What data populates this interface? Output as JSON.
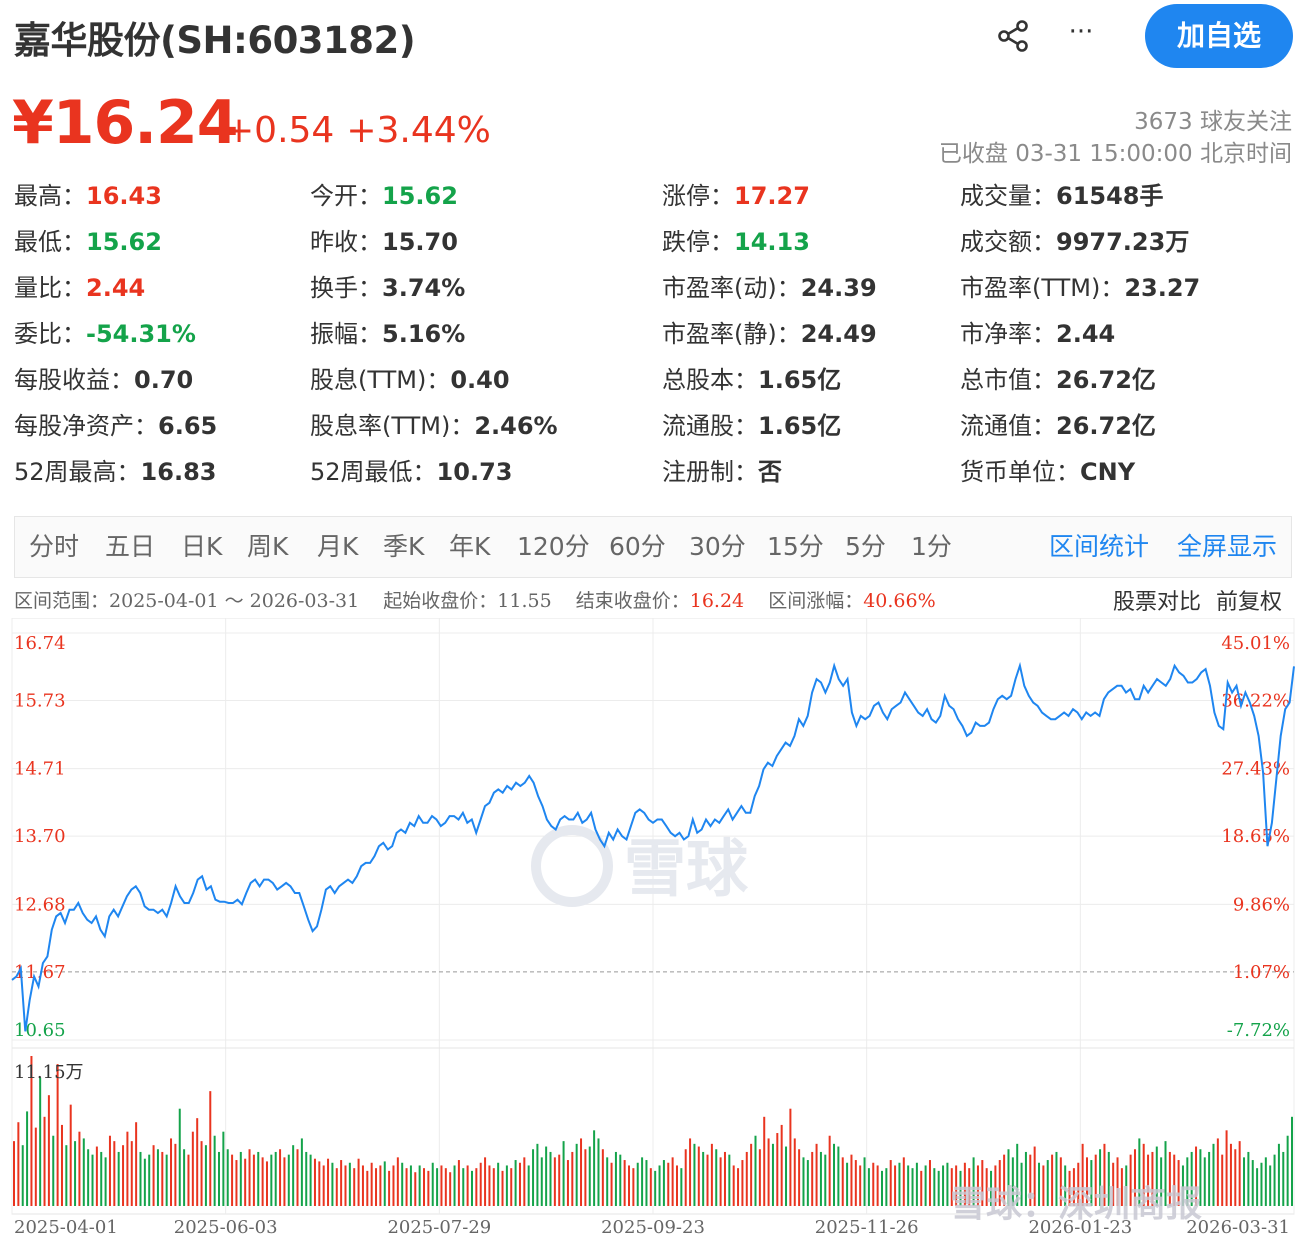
{
  "header": {
    "title": "嘉华股份(SH:603182)",
    "follow_button": "加自选",
    "share_icon": "share-icon",
    "more_icon": "more-icon"
  },
  "quote": {
    "price": "¥16.24",
    "change": "+0.54",
    "change_pct": "+3.44%",
    "followers": "3673 球友关注",
    "status": "已收盘 03-31 15:00:00 北京时间"
  },
  "stats": [
    {
      "label": "最高：",
      "value": "16.43",
      "color": "red"
    },
    {
      "label": "今开：",
      "value": "15.62",
      "color": "green"
    },
    {
      "label": "涨停：",
      "value": "17.27",
      "color": "red"
    },
    {
      "label": "成交量：",
      "value": "61548手",
      "color": ""
    },
    {
      "label": "最低：",
      "value": "15.62",
      "color": "green"
    },
    {
      "label": "昨收：",
      "value": "15.70",
      "color": ""
    },
    {
      "label": "跌停：",
      "value": "14.13",
      "color": "green"
    },
    {
      "label": "成交额：",
      "value": "9977.23万",
      "color": ""
    },
    {
      "label": "量比：",
      "value": "2.44",
      "color": "red"
    },
    {
      "label": "换手：",
      "value": "3.74%",
      "color": ""
    },
    {
      "label": "市盈率(动)：",
      "value": "24.39",
      "color": ""
    },
    {
      "label": "市盈率(TTM)：",
      "value": "23.27",
      "color": ""
    },
    {
      "label": "委比：",
      "value": "-54.31%",
      "color": "green"
    },
    {
      "label": "振幅：",
      "value": "5.16%",
      "color": ""
    },
    {
      "label": "市盈率(静)：",
      "value": "24.49",
      "color": ""
    },
    {
      "label": "市净率：",
      "value": "2.44",
      "color": ""
    },
    {
      "label": "每股收益：",
      "value": "0.70",
      "color": ""
    },
    {
      "label": "股息(TTM)：",
      "value": "0.40",
      "color": ""
    },
    {
      "label": "总股本：",
      "value": "1.65亿",
      "color": ""
    },
    {
      "label": "总市值：",
      "value": "26.72亿",
      "color": ""
    },
    {
      "label": "每股净资产：",
      "value": "6.65",
      "color": ""
    },
    {
      "label": "股息率(TTM)：",
      "value": "2.46%",
      "color": ""
    },
    {
      "label": "流通股：",
      "value": "1.65亿",
      "color": ""
    },
    {
      "label": "流通值：",
      "value": "26.72亿",
      "color": ""
    },
    {
      "label": "52周最高：",
      "value": "16.83",
      "color": ""
    },
    {
      "label": "52周最低：",
      "value": "10.73",
      "color": ""
    },
    {
      "label": "注册制：",
      "value": "否",
      "color": ""
    },
    {
      "label": "货币单位：",
      "value": "CNY",
      "color": ""
    }
  ],
  "tabs": [
    "分时",
    "五日",
    "日K",
    "周K",
    "月K",
    "季K",
    "年K",
    "120分",
    "60分",
    "30分",
    "15分",
    "5分",
    "1分"
  ],
  "tab_links": [
    "区间统计",
    "全屏显示"
  ],
  "range": {
    "range_label": "区间范围：",
    "range_value": "2025-04-01 ～ 2026-03-31",
    "start_label": "起始收盘价：",
    "start_value": "11.55",
    "end_label": "结束收盘价：",
    "end_value": "16.24",
    "pct_label": "区间涨幅：",
    "pct_value": "40.66%",
    "compare": "股票对比",
    "adjust": "前复权"
  },
  "watermark": "雪球",
  "bottom_watermark": "雪球：深圳商报",
  "colors": {
    "up": "#e9341f",
    "down": "#14a34a",
    "line": "#1f86f0",
    "accent": "#1f86f0"
  },
  "chart_data": {
    "type": "line",
    "y_left_ticks": [
      "16.74",
      "15.73",
      "14.71",
      "13.70",
      "12.68",
      "11.67",
      "10.65"
    ],
    "y_right_ticks": [
      "45.01%",
      "36.22%",
      "27.43%",
      "18.65%",
      "9.86%",
      "1.07%",
      "-7.72%"
    ],
    "ylim": [
      10.65,
      16.74
    ],
    "prev_close_reference": 11.55,
    "x_ticks": [
      "2025-04-01",
      "2025-06-03",
      "2025-07-29",
      "2025-09-23",
      "2025-11-26",
      "2026-01-23",
      "2026-03-31"
    ],
    "volume_label": "11.15万",
    "volume_max": 111500,
    "series": [
      {
        "values": [
          11.55,
          11.6,
          11.72,
          10.78,
          11.25,
          11.6,
          11.45,
          11.8,
          11.9,
          12.3,
          12.5,
          12.55,
          12.4,
          12.6,
          12.6,
          12.7,
          12.55,
          12.45,
          12.4,
          12.5,
          12.3,
          12.2,
          12.5,
          12.6,
          12.5,
          12.65,
          12.8,
          12.9,
          12.95,
          12.85,
          12.65,
          12.6,
          12.6,
          12.55,
          12.6,
          12.5,
          12.7,
          12.95,
          12.8,
          12.7,
          12.7,
          12.85,
          13.05,
          13.1,
          12.9,
          12.95,
          12.75,
          12.72,
          12.72,
          12.7,
          12.7,
          12.75,
          12.68,
          12.85,
          13.0,
          13.05,
          12.95,
          13.05,
          13.05,
          13.0,
          12.9,
          12.95,
          13.0,
          12.95,
          12.85,
          12.85,
          12.65,
          12.45,
          12.28,
          12.35,
          12.6,
          12.9,
          12.95,
          12.85,
          12.95,
          13.0,
          13.05,
          13.0,
          13.1,
          13.25,
          13.3,
          13.3,
          13.4,
          13.55,
          13.6,
          13.5,
          13.55,
          13.75,
          13.8,
          13.75,
          13.9,
          13.85,
          14.0,
          13.9,
          13.9,
          14.0,
          13.95,
          13.85,
          13.9,
          14.0,
          14.0,
          13.95,
          14.05,
          13.9,
          13.95,
          13.75,
          13.95,
          14.15,
          14.2,
          14.35,
          14.4,
          14.35,
          14.45,
          14.4,
          14.5,
          14.45,
          14.5,
          14.6,
          14.5,
          14.3,
          14.15,
          13.95,
          13.85,
          13.8,
          13.95,
          14.0,
          13.95,
          13.95,
          14.05,
          13.9,
          13.95,
          14.05,
          13.8,
          13.65,
          13.55,
          13.75,
          13.65,
          13.8,
          13.7,
          13.65,
          13.85,
          14.05,
          14.1,
          14.05,
          13.95,
          13.9,
          13.95,
          13.95,
          13.85,
          13.75,
          13.7,
          13.75,
          13.65,
          13.7,
          13.95,
          13.75,
          13.8,
          13.95,
          13.85,
          13.95,
          13.9,
          14.0,
          14.1,
          13.95,
          14.05,
          14.15,
          14.05,
          14.05,
          14.3,
          14.45,
          14.7,
          14.8,
          14.75,
          14.9,
          15.0,
          15.1,
          15.05,
          15.2,
          15.45,
          15.35,
          15.5,
          15.85,
          16.05,
          16.0,
          15.85,
          16.0,
          16.25,
          16.05,
          15.95,
          16.05,
          15.55,
          15.35,
          15.5,
          15.45,
          15.5,
          15.65,
          15.7,
          15.55,
          15.45,
          15.6,
          15.65,
          15.7,
          15.85,
          15.75,
          15.65,
          15.55,
          15.5,
          15.6,
          15.45,
          15.4,
          15.5,
          15.8,
          15.65,
          15.6,
          15.45,
          15.35,
          15.2,
          15.25,
          15.4,
          15.35,
          15.35,
          15.4,
          15.6,
          15.75,
          15.8,
          15.75,
          15.8,
          16.05,
          16.25,
          15.95,
          15.8,
          15.7,
          15.65,
          15.55,
          15.5,
          15.45,
          15.45,
          15.5,
          15.55,
          15.5,
          15.6,
          15.55,
          15.45,
          15.55,
          15.5,
          15.55,
          15.5,
          15.75,
          15.85,
          15.9,
          15.95,
          15.95,
          15.85,
          15.9,
          15.75,
          15.75,
          15.95,
          15.85,
          15.95,
          16.05,
          16.0,
          15.95,
          16.05,
          16.25,
          16.15,
          16.1,
          16.0,
          16.0,
          16.05,
          16.15,
          16.2,
          15.95,
          15.55,
          15.35,
          15.3,
          16.0,
          15.85,
          15.95,
          15.65,
          15.85,
          15.7,
          15.5,
          15.2,
          14.65,
          13.55,
          13.9,
          14.55,
          15.2,
          15.6,
          15.7,
          16.24
        ]
      }
    ],
    "volumes": [
      48,
      62,
      45,
      70,
      111,
      58,
      95,
      66,
      82,
      52,
      105,
      60,
      45,
      75,
      48,
      55,
      50,
      42,
      38,
      44,
      40,
      36,
      52,
      48,
      40,
      45,
      55,
      48,
      62,
      40,
      35,
      38,
      45,
      42,
      40,
      38,
      50,
      46,
      72,
      42,
      38,
      55,
      65,
      48,
      45,
      85,
      52,
      40,
      55,
      42,
      38,
      34,
      40,
      35,
      42,
      38,
      40,
      36,
      33,
      38,
      40,
      42,
      36,
      38,
      45,
      42,
      50,
      40,
      38,
      35,
      33,
      30,
      35,
      32,
      28,
      34,
      30,
      32,
      28,
      35,
      30,
      26,
      32,
      28,
      30,
      33,
      26,
      30,
      36,
      32,
      28,
      30,
      25,
      30,
      28,
      26,
      32,
      28,
      30,
      28,
      25,
      30,
      34,
      28,
      30,
      26,
      28,
      32,
      36,
      30,
      28,
      32,
      26,
      30,
      28,
      34,
      32,
      36,
      30,
      42,
      46,
      36,
      44,
      40,
      36,
      38,
      48,
      34,
      40,
      46,
      50,
      42,
      44,
      56,
      50,
      42,
      36,
      32,
      40,
      38,
      34,
      30,
      28,
      32,
      36,
      34,
      28,
      26,
      30,
      34,
      32,
      36,
      30,
      28,
      42,
      50,
      46,
      44,
      40,
      38,
      46,
      42,
      36,
      40,
      38,
      30,
      28,
      34,
      40,
      46,
      52,
      42,
      66,
      50,
      46,
      54,
      60,
      44,
      72,
      50,
      42,
      36,
      34,
      40,
      46,
      40,
      38,
      52,
      46,
      44,
      36,
      32,
      38,
      34,
      30,
      36,
      28,
      32,
      30,
      26,
      28,
      34,
      30,
      32,
      36,
      30,
      28,
      32,
      26,
      30,
      34,
      28,
      26,
      30,
      32,
      28,
      30,
      26,
      32,
      28,
      36,
      30,
      34,
      28,
      26,
      30,
      34,
      38,
      42,
      36,
      46,
      32,
      40,
      38,
      44,
      32,
      30,
      34,
      38,
      40,
      36,
      30,
      26,
      28,
      32,
      46,
      36,
      34,
      38,
      42,
      46,
      40,
      32,
      36,
      28,
      30,
      38,
      42,
      50,
      46,
      38,
      40,
      44,
      36,
      48,
      40,
      38,
      34,
      30,
      36,
      40,
      44,
      42,
      36,
      40,
      46,
      50,
      38,
      56,
      46,
      42,
      48,
      36,
      40,
      34,
      28,
      32,
      36,
      30,
      38,
      46,
      40,
      52,
      66
    ],
    "volume_up": [
      1,
      1,
      0,
      0,
      1,
      1,
      0,
      1,
      1,
      0,
      1,
      1,
      0,
      1,
      0,
      1,
      0,
      0,
      0,
      1,
      0,
      0,
      1,
      1,
      0,
      1,
      1,
      1,
      1,
      0,
      0,
      0,
      1,
      0,
      1,
      0,
      1,
      1,
      0,
      0,
      1,
      1,
      1,
      1,
      0,
      1,
      0,
      0,
      0,
      0,
      1,
      1,
      0,
      1,
      1,
      1,
      0,
      1,
      1,
      0,
      0,
      1,
      1,
      0,
      0,
      1,
      0,
      0,
      0,
      1,
      1,
      1,
      1,
      0,
      1,
      1,
      1,
      0,
      1,
      1,
      1,
      1,
      1,
      1,
      1,
      0,
      1,
      1,
      1,
      0,
      1,
      0,
      1,
      0,
      1,
      1,
      0,
      0,
      1,
      1,
      1,
      0,
      1,
      0,
      1,
      0,
      1,
      1,
      1,
      1,
      1,
      0,
      1,
      0,
      1,
      0,
      1,
      1,
      0,
      0,
      0,
      0,
      0,
      0,
      1,
      1,
      0,
      1,
      1,
      0,
      1,
      1,
      0,
      0,
      0,
      1,
      0,
      1,
      0,
      0,
      1,
      1,
      1,
      0,
      0,
      0,
      1,
      0,
      0,
      0,
      1,
      1,
      1,
      0,
      1,
      1,
      0,
      1,
      0,
      1,
      1,
      0,
      1,
      1,
      0,
      1,
      1,
      1,
      1,
      1,
      0,
      1,
      1,
      1,
      0,
      1,
      1,
      0,
      1,
      1,
      1,
      0,
      0,
      1,
      1,
      0,
      0,
      1,
      0,
      0,
      1,
      0,
      1,
      1,
      1,
      0,
      0,
      1,
      1,
      0,
      0,
      1,
      1,
      0,
      1,
      0,
      0,
      0,
      1,
      0,
      1,
      0,
      0,
      0,
      0,
      1,
      1,
      0,
      1,
      1,
      0,
      1,
      1,
      1,
      0,
      1,
      1,
      1,
      0,
      0,
      0,
      0,
      0,
      1,
      1,
      0,
      1,
      0,
      1,
      0,
      1,
      0,
      1,
      1,
      1,
      1,
      1,
      0,
      1,
      0,
      1,
      0,
      1,
      1,
      1,
      0,
      1,
      1,
      0,
      1,
      1,
      1,
      0,
      0,
      0,
      1,
      1,
      1,
      0,
      0,
      0,
      1,
      0,
      0,
      0,
      0,
      1,
      1,
      1,
      1,
      1,
      1
    ]
  }
}
